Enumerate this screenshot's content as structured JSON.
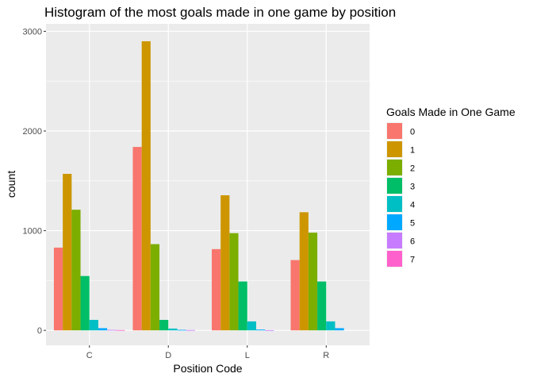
{
  "chart_data": {
    "type": "bar",
    "title": "Histogram of the most goals made in one game by position",
    "xlabel": "Position Code",
    "ylabel": "count",
    "categories": [
      "C",
      "D",
      "L",
      "R"
    ],
    "y_ticks": [
      0,
      1000,
      2000,
      3000
    ],
    "ylim": [
      -150,
      3075
    ],
    "grid": true,
    "legend": {
      "title": "Goals Made in One Game",
      "placement": "right"
    },
    "series": [
      {
        "name": "0",
        "color": "#F8766D",
        "values": [
          830,
          1840,
          815,
          705
        ]
      },
      {
        "name": "1",
        "color": "#CD9600",
        "values": [
          1570,
          2900,
          1355,
          1185
        ]
      },
      {
        "name": "2",
        "color": "#7CAE00",
        "values": [
          1210,
          865,
          975,
          980
        ]
      },
      {
        "name": "3",
        "color": "#00BE67",
        "values": [
          545,
          105,
          490,
          490
        ]
      },
      {
        "name": "4",
        "color": "#00BFC4",
        "values": [
          105,
          18,
          90,
          90
        ]
      },
      {
        "name": "5",
        "color": "#00A9FF",
        "values": [
          22,
          5,
          8,
          22
        ]
      },
      {
        "name": "6",
        "color": "#C77CFF",
        "values": [
          5,
          3,
          2,
          0
        ]
      },
      {
        "name": "7",
        "color": "#FF61CC",
        "values": [
          3,
          0,
          0,
          0
        ]
      }
    ]
  }
}
